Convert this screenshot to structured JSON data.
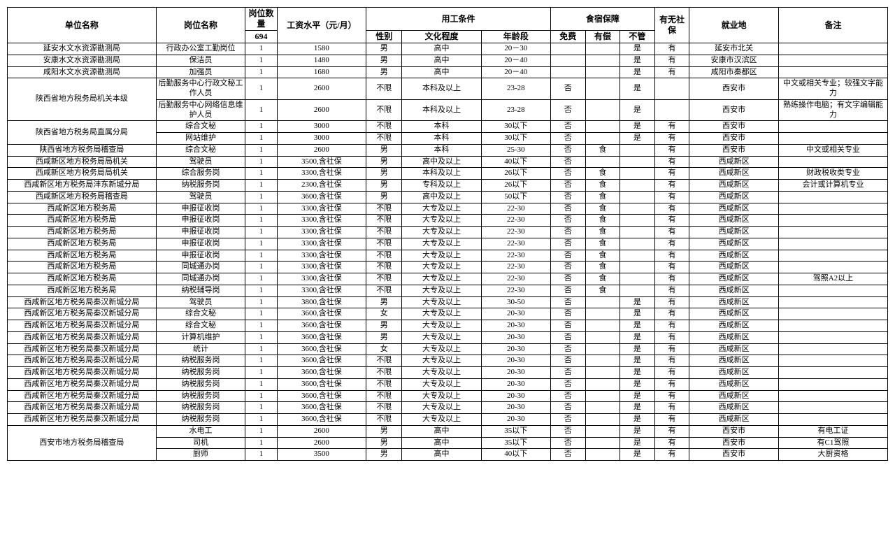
{
  "header": {
    "unit": "单位名称",
    "position": "岗位名称",
    "qty": "岗位数量",
    "qty_total": "694",
    "salary": "工资水平（元/月）",
    "cond_group": "用工条件",
    "gender": "性别",
    "edu": "文化程度",
    "age": "年龄段",
    "board_group": "食宿保障",
    "free": "免费",
    "paid": "有偿",
    "none": "不管",
    "ins": "有无社保",
    "loc": "就业地",
    "note": "备注"
  },
  "rows": [
    {
      "unit": "延安水文水资源勘测局",
      "rs": 1,
      "pos": "行政办公室工勤岗位",
      "qty": "1",
      "salary": "1580",
      "gender": "男",
      "edu": "高中",
      "age": "20－30",
      "free": "",
      "paid": "",
      "none": "是",
      "ins": "有",
      "loc": "延安市北关",
      "note": ""
    },
    {
      "unit": "安康水文水资源勘测局",
      "rs": 1,
      "pos": "保洁员",
      "qty": "1",
      "salary": "1480",
      "gender": "男",
      "edu": "高中",
      "age": "20－40",
      "free": "",
      "paid": "",
      "none": "是",
      "ins": "有",
      "loc": "安康市汉滨区",
      "note": ""
    },
    {
      "unit": "咸阳水文水资源勘测局",
      "rs": 1,
      "pos": "加强员",
      "qty": "1",
      "salary": "1680",
      "gender": "男",
      "edu": "高中",
      "age": "20－40",
      "free": "",
      "paid": "",
      "none": "是",
      "ins": "有",
      "loc": "咸阳市秦都区",
      "note": ""
    },
    {
      "unit": "陕西省地方税务局机关本级",
      "rs": 2,
      "pos": "后勤服务中心行政文秘工作人员",
      "qty": "1",
      "salary": "2600",
      "gender": "不限",
      "edu": "本科及以上",
      "age": "23-28",
      "free": "否",
      "paid": "",
      "none": "是",
      "ins": "",
      "loc": "西安市",
      "note": "中文或相关专业；较强文字能力"
    },
    {
      "pos": "后勤服务中心网络信息维护人员",
      "qty": "1",
      "salary": "2600",
      "gender": "不限",
      "edu": "本科及以上",
      "age": "23-28",
      "free": "否",
      "paid": "",
      "none": "是",
      "ins": "",
      "loc": "西安市",
      "note": "熟练操作电脑；有文字编辑能力"
    },
    {
      "unit": "陕西省地方税务局直属分局",
      "rs": 2,
      "pos": "综合文秘",
      "qty": "1",
      "salary": "3000",
      "gender": "不限",
      "edu": "本科",
      "age": "30以下",
      "free": "否",
      "paid": "",
      "none": "是",
      "ins": "有",
      "loc": "西安市",
      "note": ""
    },
    {
      "pos": "网站维护",
      "qty": "1",
      "salary": "3000",
      "gender": "不限",
      "edu": "本科",
      "age": "30以下",
      "free": "否",
      "paid": "",
      "none": "是",
      "ins": "有",
      "loc": "西安市",
      "note": ""
    },
    {
      "unit": "陕西省地方税务局稽查局",
      "rs": 1,
      "pos": "综合文秘",
      "qty": "1",
      "salary": "2600",
      "gender": "男",
      "edu": "本科",
      "age": "25-30",
      "free": "否",
      "paid": "食",
      "none": "",
      "ins": "有",
      "loc": "西安市",
      "note": "中文或相关专业"
    },
    {
      "unit": "西咸新区地方税务局局机关",
      "rs": 1,
      "pos": "驾驶员",
      "qty": "1",
      "salary": "3500,含社保",
      "gender": "男",
      "edu": "高中及以上",
      "age": "40以下",
      "free": "否",
      "paid": "",
      "none": "",
      "ins": "有",
      "loc": "西咸新区",
      "note": ""
    },
    {
      "unit": "西咸新区地方税务局局机关",
      "rs": 1,
      "pos": "综合服务岗",
      "qty": "1",
      "salary": "3300,含社保",
      "gender": "男",
      "edu": "本科及以上",
      "age": "26以下",
      "free": "否",
      "paid": "食",
      "none": "",
      "ins": "有",
      "loc": "西咸新区",
      "note": "财政税收类专业"
    },
    {
      "unit": "西咸新区地方税务局沣东新城分局",
      "rs": 1,
      "pos": "纳税服务岗",
      "qty": "1",
      "salary": "2300,含社保",
      "gender": "男",
      "edu": "专科及以上",
      "age": "26以下",
      "free": "否",
      "paid": "食",
      "none": "",
      "ins": "有",
      "loc": "西咸新区",
      "note": "会计或计算机专业"
    },
    {
      "unit": "西咸新区地方税务局稽查局",
      "rs": 1,
      "pos": "驾驶员",
      "qty": "1",
      "salary": "3600,含社保",
      "gender": "男",
      "edu": "高中及以上",
      "age": "50以下",
      "free": "否",
      "paid": "食",
      "none": "",
      "ins": "有",
      "loc": "西咸新区",
      "note": ""
    },
    {
      "unit": "西咸新区地方税务局",
      "rs": 1,
      "pos": "申报征收岗",
      "qty": "1",
      "salary": "3300,含社保",
      "gender": "不限",
      "edu": "大专及以上",
      "age": "22-30",
      "free": "否",
      "paid": "食",
      "none": "",
      "ins": "有",
      "loc": "西咸新区",
      "note": ""
    },
    {
      "unit": "西咸新区地方税务局",
      "rs": 1,
      "pos": "申报征收岗",
      "qty": "1",
      "salary": "3300,含社保",
      "gender": "不限",
      "edu": "大专及以上",
      "age": "22-30",
      "free": "否",
      "paid": "食",
      "none": "",
      "ins": "有",
      "loc": "西咸新区",
      "note": ""
    },
    {
      "unit": "西咸新区地方税务局",
      "rs": 1,
      "pos": "申报征收岗",
      "qty": "1",
      "salary": "3300,含社保",
      "gender": "不限",
      "edu": "大专及以上",
      "age": "22-30",
      "free": "否",
      "paid": "食",
      "none": "",
      "ins": "有",
      "loc": "西咸新区",
      "note": ""
    },
    {
      "unit": "西咸新区地方税务局",
      "rs": 1,
      "pos": "申报征收岗",
      "qty": "1",
      "salary": "3300,含社保",
      "gender": "不限",
      "edu": "大专及以上",
      "age": "22-30",
      "free": "否",
      "paid": "食",
      "none": "",
      "ins": "有",
      "loc": "西咸新区",
      "note": ""
    },
    {
      "unit": "西咸新区地方税务局",
      "rs": 1,
      "pos": "申报征收岗",
      "qty": "1",
      "salary": "3300,含社保",
      "gender": "不限",
      "edu": "大专及以上",
      "age": "22-30",
      "free": "否",
      "paid": "食",
      "none": "",
      "ins": "有",
      "loc": "西咸新区",
      "note": ""
    },
    {
      "unit": "西咸新区地方税务局",
      "rs": 1,
      "pos": "同城通办岗",
      "qty": "1",
      "salary": "3300,含社保",
      "gender": "不限",
      "edu": "大专及以上",
      "age": "22-30",
      "free": "否",
      "paid": "食",
      "none": "",
      "ins": "有",
      "loc": "西咸新区",
      "note": ""
    },
    {
      "unit": "西咸新区地方税务局",
      "rs": 1,
      "pos": "同城通办岗",
      "qty": "1",
      "salary": "3300,含社保",
      "gender": "不限",
      "edu": "大专及以上",
      "age": "22-30",
      "free": "否",
      "paid": "食",
      "none": "",
      "ins": "有",
      "loc": "西咸新区",
      "note": "驾照A2以上"
    },
    {
      "unit": "西咸新区地方税务局",
      "rs": 1,
      "pos": "纳税辅导岗",
      "qty": "1",
      "salary": "3300,含社保",
      "gender": "不限",
      "edu": "大专及以上",
      "age": "22-30",
      "free": "否",
      "paid": "食",
      "none": "",
      "ins": "有",
      "loc": "西咸新区",
      "note": ""
    },
    {
      "unit": "西咸新区地方税务局秦汉新城分局",
      "rs": 1,
      "pos": "驾驶员",
      "qty": "1",
      "salary": "3800,含社保",
      "gender": "男",
      "edu": "大专及以上",
      "age": "30-50",
      "free": "否",
      "paid": "",
      "none": "是",
      "ins": "有",
      "loc": "西咸新区",
      "note": ""
    },
    {
      "unit": "西咸新区地方税务局秦汉新城分局",
      "rs": 1,
      "pos": "综合文秘",
      "qty": "1",
      "salary": "3600,含社保",
      "gender": "女",
      "edu": "大专及以上",
      "age": "20-30",
      "free": "否",
      "paid": "",
      "none": "是",
      "ins": "有",
      "loc": "西咸新区",
      "note": ""
    },
    {
      "unit": "西咸新区地方税务局秦汉新城分局",
      "rs": 1,
      "pos": "综合文秘",
      "qty": "1",
      "salary": "3600,含社保",
      "gender": "男",
      "edu": "大专及以上",
      "age": "20-30",
      "free": "否",
      "paid": "",
      "none": "是",
      "ins": "有",
      "loc": "西咸新区",
      "note": ""
    },
    {
      "unit": "西咸新区地方税务局秦汉新城分局",
      "rs": 1,
      "pos": "计算机维护",
      "qty": "1",
      "salary": "3600,含社保",
      "gender": "男",
      "edu": "大专及以上",
      "age": "20-30",
      "free": "否",
      "paid": "",
      "none": "是",
      "ins": "有",
      "loc": "西咸新区",
      "note": ""
    },
    {
      "unit": "西咸新区地方税务局秦汉新城分局",
      "rs": 1,
      "pos": "统计",
      "qty": "1",
      "salary": "3600,含社保",
      "gender": "女",
      "edu": "大专及以上",
      "age": "20-30",
      "free": "否",
      "paid": "",
      "none": "是",
      "ins": "有",
      "loc": "西咸新区",
      "note": ""
    },
    {
      "unit": "西咸新区地方税务局秦汉新城分局",
      "rs": 1,
      "pos": "纳税服务岗",
      "qty": "1",
      "salary": "3600,含社保",
      "gender": "不限",
      "edu": "大专及以上",
      "age": "20-30",
      "free": "否",
      "paid": "",
      "none": "是",
      "ins": "有",
      "loc": "西咸新区",
      "note": ""
    },
    {
      "unit": "西咸新区地方税务局秦汉新城分局",
      "rs": 1,
      "pos": "纳税服务岗",
      "qty": "1",
      "salary": "3600,含社保",
      "gender": "不限",
      "edu": "大专及以上",
      "age": "20-30",
      "free": "否",
      "paid": "",
      "none": "是",
      "ins": "有",
      "loc": "西咸新区",
      "note": ""
    },
    {
      "unit": "西咸新区地方税务局秦汉新城分局",
      "rs": 1,
      "pos": "纳税服务岗",
      "qty": "1",
      "salary": "3600,含社保",
      "gender": "不限",
      "edu": "大专及以上",
      "age": "20-30",
      "free": "否",
      "paid": "",
      "none": "是",
      "ins": "有",
      "loc": "西咸新区",
      "note": ""
    },
    {
      "unit": "西咸新区地方税务局秦汉新城分局",
      "rs": 1,
      "pos": "纳税服务岗",
      "qty": "1",
      "salary": "3600,含社保",
      "gender": "不限",
      "edu": "大专及以上",
      "age": "20-30",
      "free": "否",
      "paid": "",
      "none": "是",
      "ins": "有",
      "loc": "西咸新区",
      "note": ""
    },
    {
      "unit": "西咸新区地方税务局秦汉新城分局",
      "rs": 1,
      "pos": "纳税服务岗",
      "qty": "1",
      "salary": "3600,含社保",
      "gender": "不限",
      "edu": "大专及以上",
      "age": "20-30",
      "free": "否",
      "paid": "",
      "none": "是",
      "ins": "有",
      "loc": "西咸新区",
      "note": ""
    },
    {
      "unit": "西咸新区地方税务局秦汉新城分局",
      "rs": 1,
      "pos": "纳税服务岗",
      "qty": "1",
      "salary": "3600,含社保",
      "gender": "不限",
      "edu": "大专及以上",
      "age": "20-30",
      "free": "否",
      "paid": "",
      "none": "是",
      "ins": "有",
      "loc": "西咸新区",
      "note": ""
    },
    {
      "unit": "西安市地方税务局稽查局",
      "rs": 3,
      "pos": "水电工",
      "qty": "1",
      "salary": "2600",
      "gender": "男",
      "edu": "高中",
      "age": "35以下",
      "free": "否",
      "paid": "",
      "none": "是",
      "ins": "有",
      "loc": "西安市",
      "note": "有电工证"
    },
    {
      "pos": "司机",
      "qty": "1",
      "salary": "2600",
      "gender": "男",
      "edu": "高中",
      "age": "35以下",
      "free": "否",
      "paid": "",
      "none": "是",
      "ins": "有",
      "loc": "西安市",
      "note": "有C1驾照"
    },
    {
      "pos": "厨师",
      "qty": "1",
      "salary": "3500",
      "gender": "男",
      "edu": "高中",
      "age": "40以下",
      "free": "否",
      "paid": "",
      "none": "是",
      "ins": "有",
      "loc": "西安市",
      "note": "大厨资格"
    }
  ]
}
